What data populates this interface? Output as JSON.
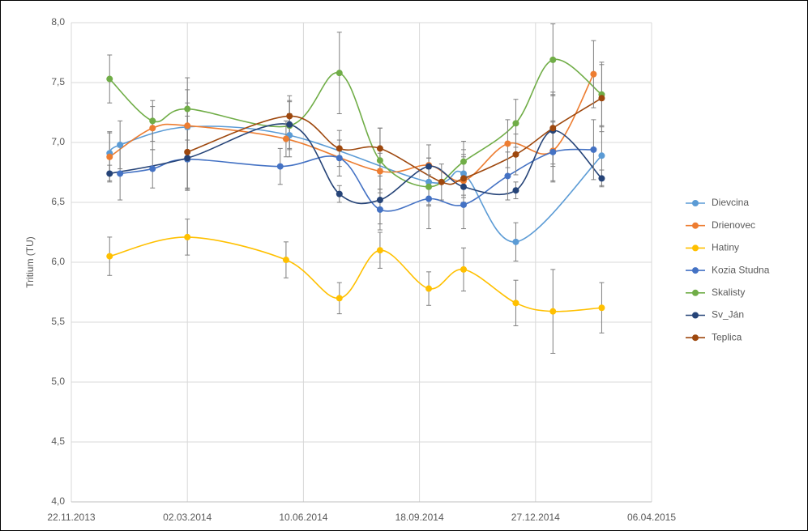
{
  "chart_data": {
    "type": "line",
    "y_label": "Tritium (TU)",
    "xlim": [
      "22.11.2013",
      "06.04.2015"
    ],
    "xticks": [
      "22.11.2013",
      "02.03.2014",
      "10.06.2014",
      "18.09.2014",
      "27.12.2014",
      "06.04.2015"
    ],
    "ylim": [
      4,
      8
    ],
    "yticks": [
      {
        "value": 4,
        "label": "4,0"
      },
      {
        "value": 4.5,
        "label": "4,5"
      },
      {
        "value": 5,
        "label": "5,0"
      },
      {
        "value": 5.5,
        "label": "5,5"
      },
      {
        "value": 6,
        "label": "6,0"
      },
      {
        "value": 6.5,
        "label": "6,5"
      },
      {
        "value": 7,
        "label": "7,0"
      },
      {
        "value": 7.5,
        "label": "7,5"
      },
      {
        "value": 8,
        "label": "8,0"
      }
    ],
    "grid": true,
    "smooth": true,
    "legend": "right",
    "series": [
      {
        "name": "Dievcina",
        "color": "#5b9bd5",
        "x": [
          "25.12.2013",
          "03.01.2014",
          "02.03.2014",
          "29.05.2014",
          "26.09.2014",
          "26.10.2014",
          "10.12.2014",
          "22.02.2015"
        ],
        "values": [
          6.91,
          6.98,
          7.13,
          7.06,
          6.67,
          6.74,
          6.17,
          6.89
        ],
        "errors": [
          0.18,
          0.2,
          0.2,
          0.18,
          0.2,
          0.2,
          0.16,
          0.25
        ]
      },
      {
        "name": "Drienovec",
        "color": "#ed7d31",
        "x": [
          "25.12.2013",
          "31.01.2014",
          "02.03.2014",
          "26.05.2014",
          "15.08.2014",
          "26.09.2014",
          "26.10.2014",
          "03.12.2014",
          "11.01.2015",
          "15.02.2015"
        ],
        "values": [
          6.88,
          7.12,
          7.14,
          7.03,
          6.76,
          6.81,
          6.68,
          6.99,
          6.93,
          7.57
        ],
        "errors": [
          0.2,
          0.18,
          0.3,
          0.15,
          0.15,
          0.17,
          0.2,
          0.2,
          0.25,
          0.28
        ]
      },
      {
        "name": "Hatiny",
        "color": "#ffc000",
        "x": [
          "25.12.2013",
          "02.03.2014",
          "26.05.2014",
          "11.07.2014",
          "15.08.2014",
          "26.09.2014",
          "26.10.2014",
          "10.12.2014",
          "11.01.2015",
          "22.02.2015"
        ],
        "values": [
          6.05,
          6.21,
          6.02,
          5.7,
          6.1,
          5.78,
          5.94,
          5.66,
          5.59,
          5.62
        ],
        "errors": [
          0.16,
          0.15,
          0.15,
          0.13,
          0.15,
          0.14,
          0.18,
          0.19,
          0.35,
          0.21
        ]
      },
      {
        "name": "Kozia Studna",
        "color": "#4472c4",
        "x": [
          "03.01.2014",
          "31.01.2014",
          "02.03.2014",
          "21.05.2014",
          "11.07.2014",
          "15.08.2014",
          "26.09.2014",
          "26.10.2014",
          "03.12.2014",
          "11.01.2015",
          "15.02.2015"
        ],
        "values": [
          6.74,
          6.78,
          6.86,
          6.8,
          6.87,
          6.44,
          6.53,
          6.48,
          6.72,
          6.92,
          6.94
        ],
        "errors": [
          0.22,
          0.16,
          0.25,
          0.15,
          0.15,
          0.17,
          0.25,
          0.2,
          0.2,
          0.25,
          0.25
        ]
      },
      {
        "name": "Skalisty",
        "color": "#70ad47",
        "x": [
          "25.12.2013",
          "31.01.2014",
          "02.03.2014",
          "29.05.2014",
          "11.07.2014",
          "15.08.2014",
          "26.09.2014",
          "26.10.2014",
          "10.12.2014",
          "11.01.2015",
          "22.02.2015"
        ],
        "values": [
          7.53,
          7.18,
          7.28,
          7.14,
          7.58,
          6.85,
          6.63,
          6.84,
          7.16,
          7.69,
          7.4
        ],
        "errors": [
          0.2,
          0.17,
          0.26,
          0.2,
          0.34,
          0.27,
          0.15,
          0.17,
          0.2,
          0.3,
          0.27
        ]
      },
      {
        "name": "Sv_Ján",
        "color": "#264478",
        "x": [
          "25.12.2013",
          "02.03.2014",
          "29.05.2014",
          "11.07.2014",
          "15.08.2014",
          "26.09.2014",
          "26.10.2014",
          "10.12.2014",
          "11.01.2015",
          "22.02.2015"
        ],
        "values": [
          6.74,
          6.87,
          7.15,
          6.57,
          6.52,
          6.8,
          6.63,
          6.6,
          7.1,
          6.7
        ],
        "errors": [
          0.07,
          0.27,
          0.2,
          0.07,
          0.2,
          0.07,
          0.07,
          0.07,
          0.3,
          0.07
        ]
      },
      {
        "name": "Teplica",
        "color": "#9e480e",
        "x": [
          "02.03.2014",
          "29.05.2014",
          "11.07.2014",
          "15.08.2014",
          "07.10.2014",
          "26.10.2014",
          "10.12.2014",
          "11.01.2015",
          "22.02.2015"
        ],
        "values": [
          6.92,
          7.22,
          6.95,
          6.95,
          6.67,
          6.7,
          6.9,
          7.12,
          7.37
        ],
        "errors": [
          0.3,
          0.17,
          0.15,
          0.17,
          0.15,
          0.2,
          0.17,
          0.3,
          0.28
        ]
      }
    ]
  }
}
